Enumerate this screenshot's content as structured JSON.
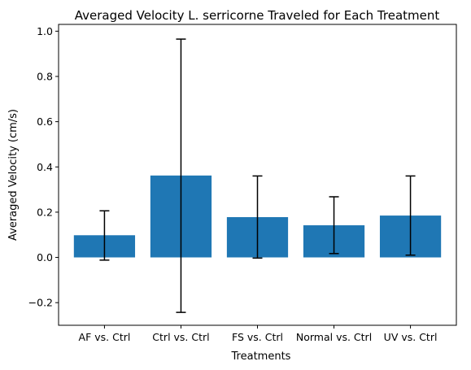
{
  "chart_data": {
    "type": "bar",
    "title": "Averaged Velocity L. serricorne Traveled for Each Treatment",
    "xlabel": "Treatments",
    "ylabel": "Averaged Velocity (cm/s)",
    "categories": [
      "AF vs. Ctrl",
      "Ctrl vs. Ctrl",
      "FS vs. Ctrl",
      "Normal vs. Ctrl",
      "UV vs. Ctrl"
    ],
    "values": [
      0.098,
      0.362,
      0.178,
      0.142,
      0.185
    ],
    "error_lower": [
      -0.012,
      -0.243,
      -0.003,
      0.017,
      0.01
    ],
    "error_upper": [
      0.206,
      0.965,
      0.36,
      0.268,
      0.36
    ],
    "ylim": [
      -0.3,
      1.03
    ],
    "yticks": [
      -0.2,
      0.0,
      0.2,
      0.4,
      0.6,
      0.8,
      1.0
    ],
    "ytick_labels": [
      "−0.2",
      "0.0",
      "0.2",
      "0.4",
      "0.6",
      "0.8",
      "1.0"
    ],
    "bar_color": "#1f77b4",
    "errorbar_color": "#000000",
    "grid": false,
    "legend": "none"
  }
}
